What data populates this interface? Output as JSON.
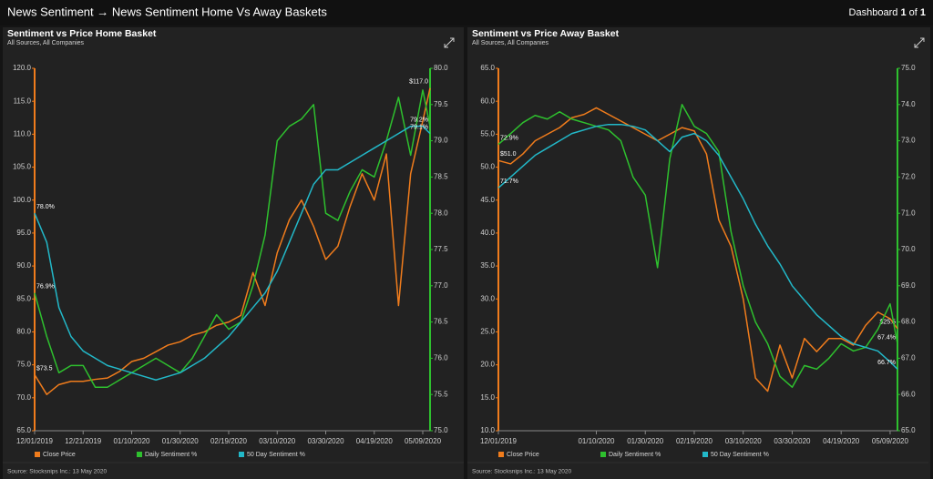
{
  "header": {
    "title": "News Sentiment → News Sentiment Home Vs Away Baskets",
    "pager": [
      "Dashboard",
      "1",
      "of",
      "1"
    ]
  },
  "chart_data": [
    {
      "type": "line",
      "title": "Sentiment vs Price Home Basket",
      "subtitle": "All Sources, All Companies",
      "source": "Source: Stocksnips Inc.: 13 May 2020",
      "grid": false,
      "legend": "bottom",
      "x": [
        "12/01/2019",
        "12/06/2019",
        "12/11/2019",
        "12/16/2019",
        "12/21/2019",
        "12/26/2019",
        "12/31/2019",
        "01/05/2020",
        "01/10/2020",
        "01/15/2020",
        "01/20/2020",
        "01/25/2020",
        "01/30/2020",
        "02/04/2020",
        "02/09/2020",
        "02/14/2020",
        "02/19/2020",
        "02/24/2020",
        "02/29/2020",
        "03/05/2020",
        "03/10/2020",
        "03/15/2020",
        "03/20/2020",
        "03/25/2020",
        "03/30/2020",
        "04/04/2020",
        "04/09/2020",
        "04/14/2020",
        "04/19/2020",
        "04/24/2020",
        "04/29/2020",
        "05/04/2020",
        "05/09/2020",
        "05/12/2020"
      ],
      "xlim": [
        "12/01/2019",
        "05/12/2020"
      ],
      "xticks": [
        "12/01/2019",
        "12/21/2019",
        "01/10/2020",
        "01/30/2020",
        "02/19/2020",
        "03/10/2020",
        "03/30/2020",
        "04/19/2020",
        "05/09/2020"
      ],
      "ylim": [
        65,
        120
      ],
      "yticks": [
        {
          "value": 65,
          "label": "65.0"
        },
        {
          "value": 70,
          "label": "70.0"
        },
        {
          "value": 75,
          "label": "75.0"
        },
        {
          "value": 80,
          "label": "80.0"
        },
        {
          "value": 85,
          "label": "85.0"
        },
        {
          "value": 90,
          "label": "90.0"
        },
        {
          "value": 95,
          "label": "95.0"
        },
        {
          "value": 100,
          "label": "100.0"
        },
        {
          "value": 105,
          "label": "105.0"
        },
        {
          "value": 110,
          "label": "110.0"
        },
        {
          "value": 115,
          "label": "115.0"
        },
        {
          "value": 120,
          "label": "120.0"
        }
      ],
      "y2lim": [
        75,
        80
      ],
      "y2ticks": [
        {
          "value": 75,
          "label": "75.0"
        },
        75.5,
        {
          "value": 76,
          "label": "76.0"
        },
        76.5,
        {
          "value": 77,
          "label": "77.0"
        },
        77.5,
        {
          "value": 78,
          "label": "78.0"
        },
        78.5,
        {
          "value": 79,
          "label": "79.0"
        },
        79.5,
        {
          "value": 80,
          "label": "80.0"
        }
      ],
      "series": [
        {
          "name": "Close Price",
          "color": "#f07c1c",
          "axis": "y",
          "values": [
            73.5,
            70.5,
            72.0,
            72.5,
            72.5,
            72.8,
            73.0,
            74.0,
            75.5,
            76.0,
            77.0,
            78.0,
            78.5,
            79.5,
            80.0,
            81.0,
            81.5,
            82.5,
            89.0,
            84.0,
            92.0,
            97.0,
            100.0,
            96.0,
            91.0,
            93.0,
            99.0,
            104.0,
            100.0,
            107.0,
            84.0,
            104.0,
            112.0,
            117.0
          ],
          "value_labels": [
            "$73.5",
            null,
            null,
            null,
            null,
            null,
            null,
            null,
            null,
            null,
            null,
            null,
            null,
            null,
            null,
            null,
            null,
            null,
            null,
            null,
            null,
            null,
            null,
            null,
            null,
            null,
            null,
            null,
            null,
            null,
            null,
            null,
            null,
            "$117.0"
          ]
        },
        {
          "name": "Daily Sentiment %",
          "color": "#2ec02e",
          "axis": "y2",
          "values": [
            76.9,
            76.3,
            75.8,
            75.9,
            75.9,
            75.6,
            75.6,
            75.7,
            75.8,
            75.9,
            76.0,
            75.9,
            75.8,
            76.0,
            76.3,
            76.6,
            76.4,
            76.5,
            77.0,
            77.7,
            79.0,
            79.2,
            79.3,
            79.5,
            78.0,
            77.9,
            78.3,
            78.6,
            78.5,
            79.0,
            79.6,
            78.8,
            79.7,
            79.2
          ],
          "value_labels": [
            "76.9%",
            null,
            null,
            null,
            null,
            null,
            null,
            null,
            null,
            null,
            null,
            null,
            null,
            null,
            null,
            null,
            null,
            null,
            null,
            null,
            null,
            null,
            null,
            null,
            null,
            null,
            null,
            null,
            null,
            null,
            null,
            null,
            null,
            "79.2%"
          ]
        },
        {
          "name": "50 Day Sentiment %",
          "color": "#22b8c8",
          "axis": "y2",
          "values": [
            78.0,
            77.6,
            76.7,
            76.3,
            76.1,
            76.0,
            75.9,
            75.85,
            75.8,
            75.75,
            75.7,
            75.75,
            75.8,
            75.9,
            76.0,
            76.15,
            76.3,
            76.5,
            76.7,
            76.9,
            77.2,
            77.6,
            78.0,
            78.4,
            78.6,
            78.6,
            78.7,
            78.8,
            78.9,
            79.0,
            79.1,
            79.2,
            79.2,
            79.1
          ],
          "value_labels": [
            "78.0%",
            null,
            null,
            null,
            null,
            null,
            null,
            null,
            null,
            null,
            null,
            null,
            null,
            null,
            null,
            null,
            null,
            null,
            null,
            null,
            null,
            null,
            null,
            null,
            null,
            null,
            null,
            null,
            null,
            null,
            null,
            null,
            null,
            "79.1%"
          ]
        }
      ]
    },
    {
      "type": "line",
      "title": "Sentiment vs Price Away Basket",
      "subtitle": "All Sources, All Companies",
      "source": "Source: Stocksnips Inc.: 13 May 2020",
      "grid": false,
      "legend": "bottom",
      "x": [
        "12/01/2019",
        "12/06/2019",
        "12/11/2019",
        "12/16/2019",
        "12/21/2019",
        "12/26/2019",
        "12/31/2019",
        "01/05/2020",
        "01/10/2020",
        "01/15/2020",
        "01/20/2020",
        "01/25/2020",
        "01/30/2020",
        "02/04/2020",
        "02/09/2020",
        "02/14/2020",
        "02/19/2020",
        "02/24/2020",
        "02/29/2020",
        "03/05/2020",
        "03/10/2020",
        "03/15/2020",
        "03/20/2020",
        "03/25/2020",
        "03/30/2020",
        "04/04/2020",
        "04/09/2020",
        "04/14/2020",
        "04/19/2020",
        "04/24/2020",
        "04/29/2020",
        "05/04/2020",
        "05/09/2020",
        "05/12/2020"
      ],
      "xlim": [
        "12/01/2019",
        "05/12/2020"
      ],
      "xticks": [
        "12/01/2019",
        "01/10/2020",
        "01/30/2020",
        "02/19/2020",
        "03/10/2020",
        "03/30/2020",
        "04/19/2020",
        "05/09/2020"
      ],
      "ylim": [
        10,
        65
      ],
      "yticks": [
        {
          "value": 10,
          "label": "10.0"
        },
        {
          "value": 15,
          "label": "15.0"
        },
        {
          "value": 20,
          "label": "20.0"
        },
        {
          "value": 25,
          "label": "25.0"
        },
        {
          "value": 30,
          "label": "30.0"
        },
        {
          "value": 35,
          "label": "35.0"
        },
        {
          "value": 40,
          "label": "40.0"
        },
        {
          "value": 45,
          "label": "45.0"
        },
        {
          "value": 50,
          "label": "50.0"
        },
        {
          "value": 55,
          "label": "55.0"
        },
        {
          "value": 60,
          "label": "60.0"
        },
        {
          "value": 65,
          "label": "65.0"
        }
      ],
      "y2lim": [
        65,
        75
      ],
      "y2ticks": [
        {
          "value": 65,
          "label": "65.0"
        },
        {
          "value": 66,
          "label": "66.0"
        },
        {
          "value": 67,
          "label": "67.0"
        },
        {
          "value": 68,
          "label": "68.0"
        },
        {
          "value": 69,
          "label": "69.0"
        },
        {
          "value": 70,
          "label": "70.0"
        },
        {
          "value": 71,
          "label": "71.0"
        },
        {
          "value": 72,
          "label": "72.0"
        },
        {
          "value": 73,
          "label": "73.0"
        },
        {
          "value": 74,
          "label": "74.0"
        },
        {
          "value": 75,
          "label": "75.0"
        }
      ],
      "series": [
        {
          "name": "Close Price",
          "color": "#f07c1c",
          "axis": "y",
          "values": [
            51.0,
            50.5,
            52.0,
            54.0,
            55.0,
            56.0,
            57.5,
            58.0,
            59.0,
            58.0,
            57.0,
            56.0,
            55.0,
            54.0,
            55.0,
            56.0,
            55.5,
            52.0,
            42.0,
            38.0,
            30.0,
            18.0,
            16.0,
            23.0,
            18.0,
            24.0,
            22.0,
            24.0,
            24.0,
            23.0,
            26.0,
            28.0,
            27.0,
            25.5
          ],
          "value_labels": [
            "$51.0",
            null,
            null,
            null,
            null,
            null,
            null,
            null,
            null,
            null,
            null,
            null,
            null,
            null,
            null,
            null,
            null,
            null,
            null,
            null,
            null,
            null,
            null,
            null,
            null,
            null,
            null,
            null,
            null,
            null,
            null,
            null,
            null,
            "$25.5"
          ]
        },
        {
          "name": "Daily Sentiment %",
          "color": "#2ec02e",
          "axis": "y2",
          "values": [
            72.9,
            73.2,
            73.5,
            73.7,
            73.6,
            73.8,
            73.6,
            73.5,
            73.4,
            73.3,
            73.0,
            72.0,
            71.5,
            69.5,
            72.5,
            74.0,
            73.4,
            73.2,
            72.7,
            70.5,
            69.0,
            68.0,
            67.4,
            66.5,
            66.2,
            66.8,
            66.7,
            67.0,
            67.4,
            67.2,
            67.3,
            67.8,
            68.5,
            67.4
          ],
          "value_labels": [
            "72.9%",
            null,
            null,
            null,
            null,
            null,
            null,
            null,
            null,
            null,
            null,
            null,
            null,
            null,
            null,
            null,
            null,
            null,
            null,
            null,
            null,
            null,
            null,
            null,
            null,
            null,
            null,
            null,
            null,
            null,
            null,
            null,
            null,
            "67.4%"
          ]
        },
        {
          "name": "50 Day Sentiment %",
          "color": "#22b8c8",
          "axis": "y2",
          "values": [
            71.7,
            72.0,
            72.3,
            72.6,
            72.8,
            73.0,
            73.2,
            73.3,
            73.4,
            73.45,
            73.45,
            73.4,
            73.3,
            73.0,
            72.7,
            73.1,
            73.2,
            73.0,
            72.6,
            72.0,
            71.4,
            70.7,
            70.1,
            69.6,
            69.0,
            68.6,
            68.2,
            67.9,
            67.6,
            67.4,
            67.3,
            67.2,
            66.9,
            66.7
          ],
          "value_labels": [
            "71.7%",
            null,
            null,
            null,
            null,
            null,
            null,
            null,
            null,
            null,
            null,
            null,
            null,
            null,
            null,
            null,
            null,
            null,
            null,
            null,
            null,
            null,
            null,
            null,
            null,
            null,
            null,
            null,
            null,
            null,
            null,
            null,
            null,
            "66.7%"
          ]
        }
      ]
    }
  ]
}
